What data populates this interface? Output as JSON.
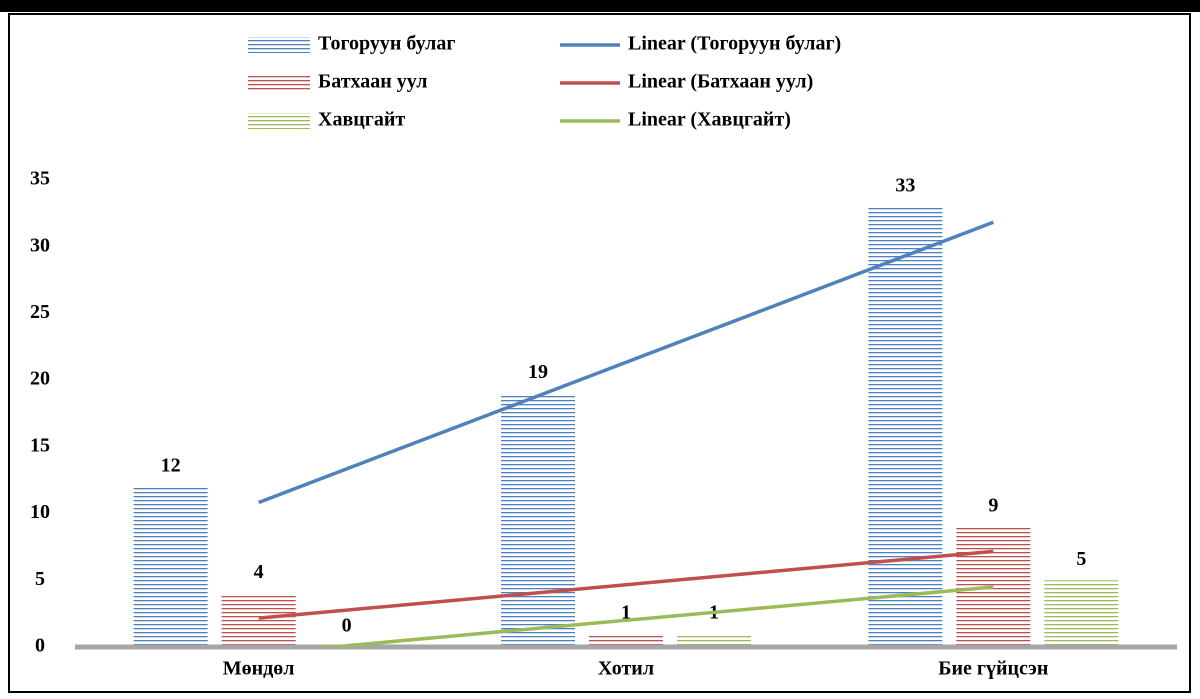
{
  "chart_data": {
    "type": "bar",
    "categories": [
      "Мөндөл",
      "Хотил",
      "Бие гүйцсэн"
    ],
    "series": [
      {
        "name": "Тогоруун булаг",
        "color": "#4f81bd",
        "values": [
          12,
          19,
          33
        ],
        "trendline": {
          "name": "Linear (Тогоруун булаг)",
          "color": "#4f81bd"
        }
      },
      {
        "name": "Батхаан уул",
        "color": "#c0504d",
        "values": [
          4,
          1,
          9
        ],
        "trendline": {
          "name": "Linear (Батхаан уул)",
          "color": "#c0504d"
        }
      },
      {
        "name": "Хавцгайт",
        "color": "#9bbb59",
        "values": [
          0,
          1,
          5
        ],
        "trendline": {
          "name": "Linear (Хавцгайт)",
          "color": "#9bbb59"
        }
      }
    ],
    "ylim": [
      0,
      35
    ],
    "yticks": [
      0,
      5,
      10,
      15,
      20,
      25,
      30,
      35
    ],
    "grid": false,
    "legend": "top"
  }
}
